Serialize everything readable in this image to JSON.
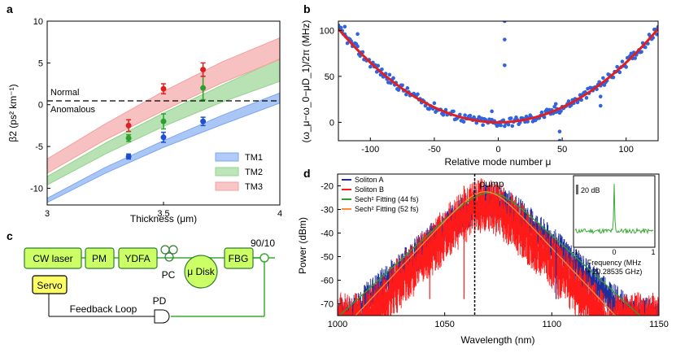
{
  "chart_data": [
    {
      "panel": "a",
      "type": "area",
      "xlabel": "Thickness (μm)",
      "ylabel": "β2 (ps² km⁻¹)",
      "xlim": [
        3,
        4
      ],
      "ylim": [
        -12,
        10
      ],
      "xticks": [
        "3",
        "3.5",
        "4"
      ],
      "yticks": [
        "10",
        "5",
        "0",
        "-5",
        "-10"
      ],
      "region_labels": [
        "Normal",
        "Anomalous"
      ],
      "series": [
        {
          "name": "TM1",
          "color": "#7da7f0",
          "band_low": [
            [
              3.0,
              -11.7
            ],
            [
              3.25,
              -8.2
            ],
            [
              3.5,
              -5.1
            ],
            [
              3.75,
              -2.4
            ],
            [
              4.0,
              0.2
            ]
          ],
          "band_high": [
            [
              3.0,
              -11.2
            ],
            [
              3.25,
              -7.5
            ],
            [
              3.5,
              -4.3
            ],
            [
              3.75,
              -1.3
            ],
            [
              4.0,
              1.4
            ]
          ],
          "points": [
            {
              "x": 3.35,
              "y": -6.2,
              "err": 0.3
            },
            {
              "x": 3.5,
              "y": -3.9,
              "err": 0.6
            },
            {
              "x": 3.67,
              "y": -2.0,
              "err": 0.5
            }
          ],
          "point_color": "#1f4fd0"
        },
        {
          "name": "TM2",
          "color": "#92d38c",
          "band_low": [
            [
              3.0,
              -9.6
            ],
            [
              3.25,
              -5.9
            ],
            [
              3.5,
              -2.6
            ],
            [
              3.75,
              0.3
            ],
            [
              4.0,
              2.8
            ]
          ],
          "band_high": [
            [
              3.0,
              -8.6
            ],
            [
              3.25,
              -4.6
            ],
            [
              3.5,
              -1.0
            ],
            [
              3.75,
              2.3
            ],
            [
              4.0,
              5.5
            ]
          ],
          "points": [
            {
              "x": 3.35,
              "y": -4.0,
              "err": 0.4
            },
            {
              "x": 3.5,
              "y": -2.0,
              "err": 0.9
            },
            {
              "x": 3.67,
              "y": 2.0,
              "err": 1.4
            }
          ],
          "point_color": "#2ca02c"
        },
        {
          "name": "TM3",
          "color": "#f4a0a0",
          "band_low": [
            [
              3.0,
              -8.2
            ],
            [
              3.25,
              -4.2
            ],
            [
              3.5,
              -0.7
            ],
            [
              3.75,
              2.6
            ],
            [
              4.0,
              5.4
            ]
          ],
          "band_high": [
            [
              3.0,
              -6.5
            ],
            [
              3.25,
              -2.3
            ],
            [
              3.5,
              1.6
            ],
            [
              3.75,
              5.1
            ],
            [
              4.0,
              8.0
            ]
          ],
          "points": [
            {
              "x": 3.35,
              "y": -2.5,
              "err": 0.7
            },
            {
              "x": 3.5,
              "y": 1.9,
              "err": 0.6
            },
            {
              "x": 3.67,
              "y": 4.2,
              "err": 0.8
            }
          ],
          "point_color": "#e02020"
        }
      ]
    },
    {
      "panel": "b",
      "type": "scatter",
      "xlabel": "Relative mode number μ",
      "ylabel": "(ω_μ−ω_0−μD_1)/2π (MHz)",
      "xlim": [
        -125,
        125
      ],
      "ylim": [
        -20,
        110
      ],
      "xticks": [
        "-100",
        "-50",
        "0",
        "50",
        "100"
      ],
      "yticks": [
        "100",
        "50",
        "0"
      ],
      "fit": {
        "type": "parabola",
        "coefficient": 0.0065,
        "color": "#e02020"
      },
      "outliers": [
        [
          5,
          110
        ],
        [
          5,
          90
        ],
        [
          5,
          62
        ],
        [
          -5,
          12
        ],
        [
          48,
          -10
        ],
        [
          48,
          -20
        ],
        [
          45,
          20
        ],
        [
          80,
          28
        ],
        [
          80,
          18
        ],
        [
          -120,
          104
        ],
        [
          -110,
          96
        ]
      ],
      "point_color": "#2f63e0"
    },
    {
      "panel": "c",
      "type": "diagram",
      "blocks": [
        "CW laser",
        "PM",
        "YDFA",
        "μ Disk",
        "FBG",
        "Servo"
      ],
      "labels": [
        "PC",
        "90/10",
        "PD",
        "Feedback Loop"
      ]
    },
    {
      "panel": "d",
      "type": "line",
      "xlabel": "Wavelength (nm)",
      "ylabel": "Power (dBm)",
      "xlim": [
        1000,
        1150
      ],
      "ylim": [
        -75,
        -15
      ],
      "xticks": [
        "1000",
        "1050",
        "1100",
        "1150"
      ],
      "yticks": [
        "-20",
        "-30",
        "-40",
        "-50",
        "-60",
        "-70"
      ],
      "pump_label": "pump",
      "pump_wavelength": 1064,
      "legend": [
        {
          "name": "Soliton A",
          "color": "#1f2f9a"
        },
        {
          "name": "Soliton B",
          "color": "#ff1a1a"
        },
        {
          "name": "Sech² Fitting (44 fs)",
          "color": "#2ca02c"
        },
        {
          "name": "Sech² Fitting (52 fs)",
          "color": "#ff8c3a"
        }
      ],
      "inset": {
        "xlabel": "Frequency (MHz + 20.28535 GHz)",
        "xticks": [
          "-1",
          "0",
          "1"
        ],
        "scale_label": "20 dB",
        "color": "#3aaa35"
      }
    }
  ]
}
